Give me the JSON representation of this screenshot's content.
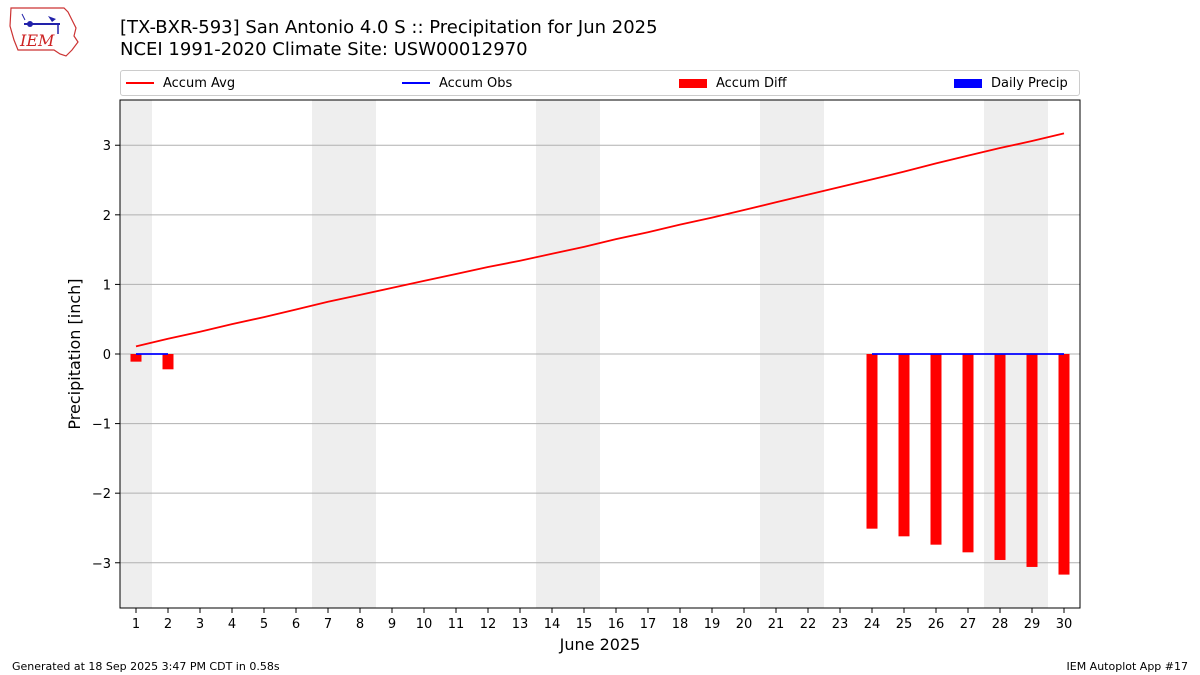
{
  "header": {
    "title_line1": "[TX-BXR-593] San Antonio 4.0 S :: Precipitation for Jun 2025",
    "title_line2": "NCEI 1991-2020 Climate Site: USW00012970",
    "logo_text": "IEM"
  },
  "legend": [
    {
      "label": "Accum Avg",
      "kind": "line",
      "color": "#ff0000"
    },
    {
      "label": "Accum Obs",
      "kind": "line",
      "color": "#0000ff"
    },
    {
      "label": "Accum Diff",
      "kind": "bar",
      "color": "#ff0000"
    },
    {
      "label": "Daily Precip",
      "kind": "bar",
      "color": "#0000ff"
    }
  ],
  "footer": {
    "generated": "Generated at 18 Sep 2025 3:47 PM CDT in 0.58s",
    "app": "IEM Autoplot App #17"
  },
  "chart_data": {
    "type": "bar",
    "xlabel": "June 2025",
    "ylabel": "Precipitation [inch]",
    "xlim": [
      0.5,
      30.5
    ],
    "ylim": [
      -3.65,
      3.65
    ],
    "yticks": [
      3,
      2,
      1,
      0,
      -1,
      -2,
      -3
    ],
    "ytick_labels": [
      "3",
      "2",
      "1",
      "0",
      "−1",
      "−2",
      "−3"
    ],
    "x": [
      1,
      2,
      3,
      4,
      5,
      6,
      7,
      8,
      9,
      10,
      11,
      12,
      13,
      14,
      15,
      16,
      17,
      18,
      19,
      20,
      21,
      22,
      23,
      24,
      25,
      26,
      27,
      28,
      29,
      30
    ],
    "grid": "horizontal",
    "weekend_shading": [
      [
        0.5,
        1.5
      ],
      [
        6.5,
        8.5
      ],
      [
        13.5,
        15.5
      ],
      [
        20.5,
        22.5
      ],
      [
        27.5,
        29.5
      ]
    ],
    "weekend_color": "#eeeeee",
    "series": [
      {
        "name": "Accum Avg",
        "type": "line",
        "color": "#ff0000",
        "x": [
          1,
          2,
          3,
          4,
          5,
          6,
          7,
          8,
          9,
          10,
          11,
          12,
          13,
          14,
          15,
          16,
          17,
          18,
          19,
          20,
          21,
          22,
          23,
          24,
          25,
          26,
          27,
          28,
          29,
          30
        ],
        "values": [
          0.11,
          0.22,
          0.32,
          0.43,
          0.53,
          0.64,
          0.75,
          0.85,
          0.95,
          1.05,
          1.15,
          1.25,
          1.34,
          1.44,
          1.54,
          1.65,
          1.75,
          1.86,
          1.96,
          2.07,
          2.18,
          2.29,
          2.4,
          2.51,
          2.62,
          2.74,
          2.85,
          2.96,
          3.06,
          3.17
        ]
      },
      {
        "name": "Accum Obs",
        "type": "line",
        "color": "#0000ff",
        "segments": [
          {
            "x": [
              1,
              2
            ],
            "values": [
              0,
              0
            ]
          },
          {
            "x": [
              24,
              25,
              26,
              27,
              28,
              29,
              30
            ],
            "values": [
              0,
              0,
              0,
              0,
              0,
              0,
              0
            ]
          }
        ]
      },
      {
        "name": "Accum Diff",
        "type": "bar",
        "color": "#ff0000",
        "x": [
          1,
          2,
          24,
          25,
          26,
          27,
          28,
          29,
          30
        ],
        "values": [
          -0.11,
          -0.22,
          -2.51,
          -2.62,
          -2.74,
          -2.85,
          -2.96,
          -3.06,
          -3.17
        ]
      },
      {
        "name": "Daily Precip",
        "type": "bar",
        "color": "#0000ff",
        "x": [],
        "values": []
      }
    ]
  }
}
